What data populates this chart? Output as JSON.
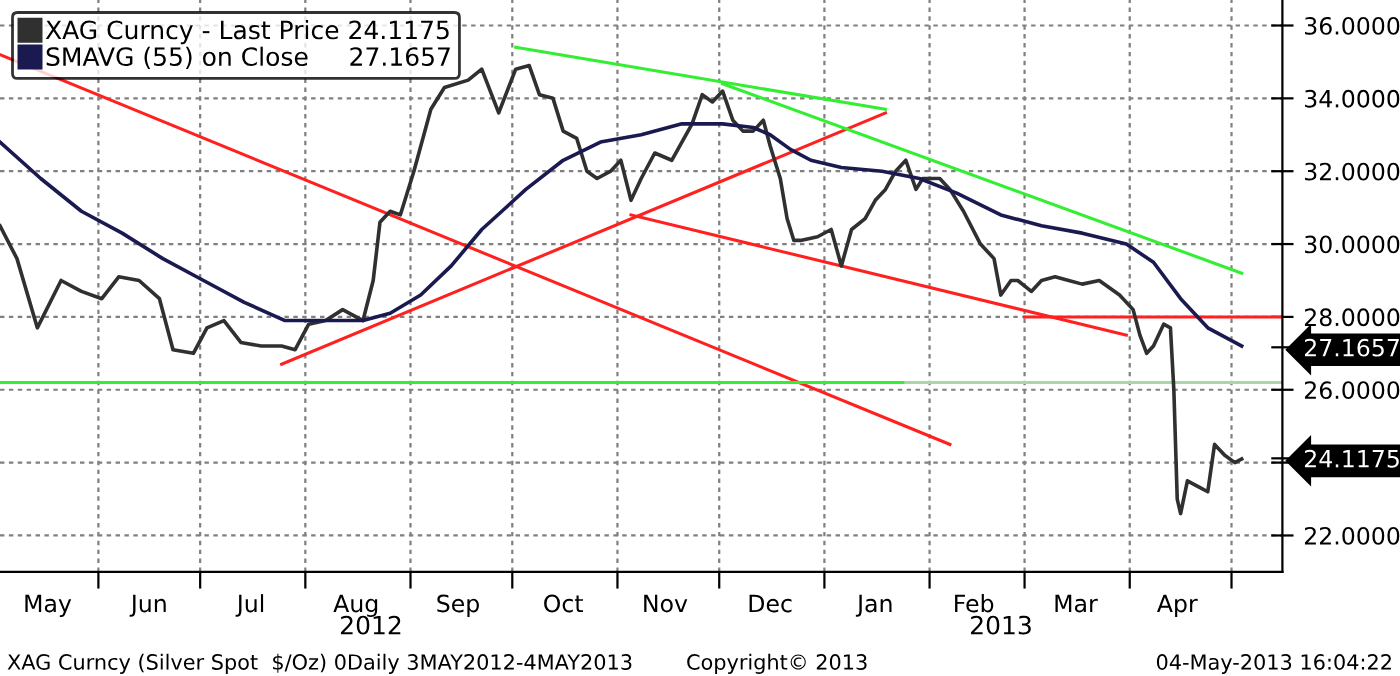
{
  "chart_data": {
    "type": "line",
    "xlim": [
      "2012-05-03",
      "2013-05-16"
    ],
    "xticks": [
      {
        "value": "2012-06-01",
        "label": null
      },
      {
        "value": "2012-07-01",
        "label": null
      },
      {
        "value": "2012-08-01",
        "label": null
      },
      {
        "value": "2012-09-01",
        "label": null
      },
      {
        "value": "2012-10-01",
        "label": null
      },
      {
        "value": "2012-11-01",
        "label": null
      },
      {
        "value": "2012-12-01",
        "label": null
      },
      {
        "value": "2013-01-01",
        "label": null
      },
      {
        "value": "2013-02-01",
        "label": null
      },
      {
        "value": "2013-03-01",
        "label": null
      },
      {
        "value": "2013-04-01",
        "label": null
      },
      {
        "value": "2013-05-01",
        "label": null
      },
      {
        "value": "2012-05-17",
        "label": "May"
      },
      {
        "value": "2012-06-16",
        "label": "Jun"
      },
      {
        "value": "2012-07-16",
        "label": "Jul"
      },
      {
        "value": "2012-08-16",
        "label": "Aug"
      },
      {
        "value": "2012-09-15",
        "label": "Sep"
      },
      {
        "value": "2012-10-16",
        "label": "Oct"
      },
      {
        "value": "2012-11-15",
        "label": "Nov"
      },
      {
        "value": "2012-12-16",
        "label": "Dec"
      },
      {
        "value": "2013-01-16",
        "label": "Jan"
      },
      {
        "value": "2013-02-14",
        "label": "Feb"
      },
      {
        "value": "2013-03-16",
        "label": "Mar"
      },
      {
        "value": "2013-04-15",
        "label": "Apr"
      }
    ],
    "ylim": [
      21,
      36.7
    ],
    "yticks": [
      {
        "value": 22,
        "label": "22.0000"
      },
      {
        "value": 24,
        "label": null
      },
      {
        "value": 24.1175,
        "label": "24.1175"
      },
      {
        "value": 27.1657,
        "label": "27.1657"
      },
      {
        "value": 26,
        "label": "26.0000"
      },
      {
        "value": 28,
        "label": "28.0000"
      },
      {
        "value": 30,
        "label": "30.0000"
      },
      {
        "value": 32,
        "label": "32.0000"
      },
      {
        "value": 34,
        "label": "34.0000"
      },
      {
        "value": 36,
        "label": "36.0000"
      }
    ],
    "grid": true,
    "legend": "top left",
    "line_style": "solid",
    "series": [
      {
        "name": "XAG Curncy - Last Price 24.1175",
        "color": "#303030",
        "x": [
          "2012-05-03",
          "2012-05-08",
          "2012-05-14",
          "2012-05-21",
          "2012-05-27",
          "2012-06-02",
          "2012-06-07",
          "2012-06-13",
          "2012-06-19",
          "2012-06-23",
          "2012-06-29",
          "2012-07-03",
          "2012-07-08",
          "2012-07-13",
          "2012-07-19",
          "2012-07-25",
          "2012-07-29",
          "2012-08-02",
          "2012-08-07",
          "2012-08-12",
          "2012-08-18",
          "2012-08-21",
          "2012-08-23",
          "2012-08-26",
          "2012-08-29",
          "2012-09-02",
          "2012-09-07",
          "2012-09-11",
          "2012-09-18",
          "2012-09-22",
          "2012-09-27",
          "2012-10-02",
          "2012-10-06",
          "2012-10-09",
          "2012-10-13",
          "2012-10-16",
          "2012-10-20",
          "2012-10-23",
          "2012-10-26",
          "2012-10-30",
          "2012-11-02",
          "2012-11-05",
          "2012-11-08",
          "2012-11-12",
          "2012-11-17",
          "2012-11-20",
          "2012-11-23",
          "2012-11-26",
          "2012-11-29",
          "2012-12-02",
          "2012-12-05",
          "2012-12-08",
          "2012-12-11",
          "2012-12-14",
          "2012-12-16",
          "2012-12-19",
          "2012-12-21",
          "2012-12-23",
          "2012-12-25",
          "2012-12-30",
          "2013-01-03",
          "2013-01-06",
          "2013-01-09",
          "2013-01-13",
          "2013-01-16",
          "2013-01-19",
          "2013-01-22",
          "2013-01-25",
          "2013-01-28",
          "2013-01-30",
          "2013-02-01",
          "2013-02-04",
          "2013-02-07",
          "2013-02-11",
          "2013-02-16",
          "2013-02-20",
          "2013-02-22",
          "2013-02-25",
          "2013-02-27",
          "2013-03-03",
          "2013-03-06",
          "2013-03-10",
          "2013-03-14",
          "2013-03-18",
          "2013-03-23",
          "2013-03-26",
          "2013-03-29",
          "2013-04-02",
          "2013-04-04",
          "2013-04-06",
          "2013-04-08",
          "2013-04-11",
          "2013-04-13",
          "2013-04-14",
          "2013-04-15",
          "2013-04-16",
          "2013-04-18",
          "2013-04-22",
          "2013-04-24",
          "2013-04-26",
          "2013-04-29",
          "2013-05-02",
          "2013-05-04"
        ],
        "values": [
          30.5,
          29.6,
          27.7,
          29.0,
          28.7,
          28.5,
          29.1,
          29.0,
          28.5,
          27.1,
          27.0,
          27.7,
          27.9,
          27.3,
          27.2,
          27.2,
          27.1,
          27.8,
          27.9,
          28.2,
          27.9,
          29.0,
          30.6,
          30.9,
          30.8,
          32.0,
          33.7,
          34.3,
          34.5,
          34.8,
          33.6,
          34.8,
          34.9,
          34.1,
          34.0,
          33.1,
          32.9,
          32.0,
          31.8,
          32.0,
          32.3,
          31.2,
          31.8,
          32.5,
          32.3,
          32.8,
          33.3,
          34.1,
          33.9,
          34.2,
          33.4,
          33.1,
          33.1,
          33.4,
          32.7,
          31.8,
          30.7,
          30.1,
          30.1,
          30.2,
          30.4,
          29.4,
          30.4,
          30.7,
          31.2,
          31.5,
          32.0,
          32.3,
          31.5,
          31.8,
          31.8,
          31.8,
          31.5,
          30.9,
          30.0,
          29.6,
          28.6,
          29.0,
          29.0,
          28.7,
          29.0,
          29.1,
          29.0,
          28.9,
          29.0,
          28.8,
          28.6,
          28.2,
          27.5,
          27.0,
          27.2,
          27.8,
          27.7,
          26.0,
          23.0,
          22.6,
          23.5,
          23.3,
          23.2,
          24.5,
          24.2,
          24.0,
          24.1
        ]
      },
      {
        "name": "SMAVG (55) on Close     27.1657",
        "color": "#1a1a50",
        "x": [
          "2012-05-03",
          "2012-05-15",
          "2012-05-27",
          "2012-06-08",
          "2012-06-20",
          "2012-07-02",
          "2012-07-14",
          "2012-07-26",
          "2012-08-07",
          "2012-08-18",
          "2012-08-26",
          "2012-09-04",
          "2012-09-13",
          "2012-09-22",
          "2012-10-05",
          "2012-10-16",
          "2012-10-27",
          "2012-11-08",
          "2012-11-20",
          "2012-12-02",
          "2012-12-11",
          "2012-12-16",
          "2012-12-22",
          "2012-12-28",
          "2013-01-06",
          "2013-01-18",
          "2013-01-29",
          "2013-02-09",
          "2013-02-22",
          "2013-03-06",
          "2013-03-18",
          "2013-03-31",
          "2013-04-08",
          "2013-04-16",
          "2013-04-24",
          "2013-05-04"
        ],
        "values": [
          32.8,
          31.8,
          30.9,
          30.3,
          29.6,
          29.0,
          28.4,
          27.9,
          27.9,
          27.9,
          28.1,
          28.6,
          29.4,
          30.4,
          31.5,
          32.3,
          32.8,
          33.0,
          33.3,
          33.3,
          33.2,
          33.0,
          32.6,
          32.3,
          32.1,
          32.0,
          31.8,
          31.4,
          30.8,
          30.5,
          30.3,
          30.0,
          29.5,
          28.5,
          27.7,
          27.2
        ]
      },
      {
        "color": "#ff2020",
        "x": [
          "2012-05-03",
          "2013-02-07"
        ],
        "values": [
          35.2,
          24.5
        ]
      },
      {
        "color": "#ff2020",
        "x": [
          "2012-07-25",
          "2013-01-19"
        ],
        "values": [
          26.7,
          33.6
        ]
      },
      {
        "color": "#ff2020",
        "x": [
          "2012-11-05",
          "2013-03-31"
        ],
        "values": [
          30.8,
          27.5
        ]
      },
      {
        "color": "#ff2020",
        "x": [
          "2013-03-01",
          "2013-05-16"
        ],
        "values": [
          28.0,
          28.0
        ]
      },
      {
        "color": "#33ee33",
        "x": [
          "2012-10-02",
          "2013-01-19"
        ],
        "values": [
          35.4,
          33.7
        ]
      },
      {
        "color": "#33ee33",
        "x": [
          "2012-12-02",
          "2013-05-04"
        ],
        "values": [
          34.4,
          29.2
        ]
      },
      {
        "color": "#33ee33",
        "x": [
          "2012-05-03",
          "2013-01-25"
        ],
        "values": [
          26.2,
          26.2
        ]
      },
      {
        "color": "#a8d8a8",
        "x": [
          "2013-01-25",
          "2013-05-16"
        ],
        "values": [
          26.2,
          26.2
        ]
      }
    ],
    "annotations": [
      "2012",
      "2013",
      "XAG Curncy (Silver Spot  $/Oz) 0Daily 3MAY2012-4MAY2013",
      "Copyright© 2013",
      "04-May-2013 16:04:22"
    ]
  }
}
